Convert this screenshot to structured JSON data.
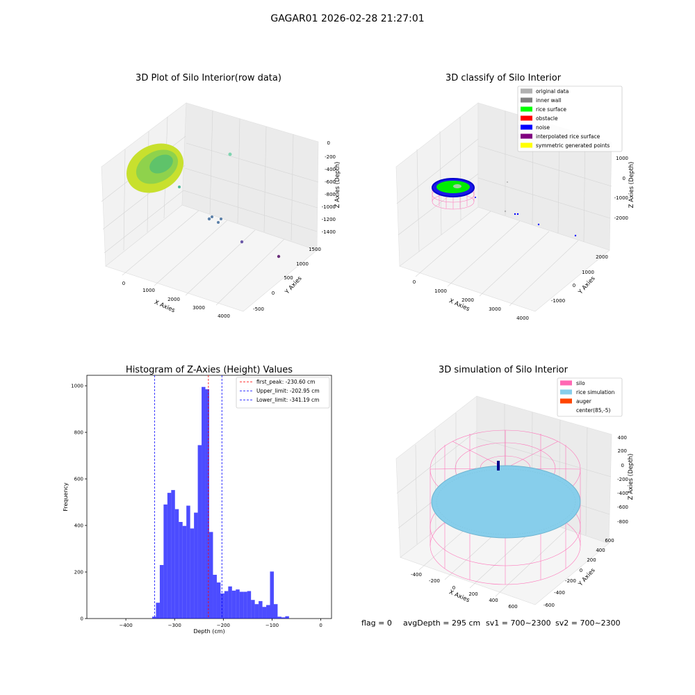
{
  "figure": {
    "suptitle": "GAGAR01 2026-02-28 21:27:01",
    "footer": {
      "flag": "flag = 0",
      "avg_depth": "avgDepth = 295 cm",
      "sv1": "sv1 = 700~2300",
      "sv2": "sv2 = 700~2300"
    }
  },
  "panels": {
    "raw": {
      "title": "3D Plot of Silo Interior(row data)",
      "xlabel": "X Axies",
      "ylabel": "Y Axies",
      "zlabel": "Z Axies (Depth)",
      "xticks": [
        "0",
        "1000",
        "2000",
        "3000",
        "4000"
      ],
      "yticks": [
        "-500",
        "0",
        "500",
        "1000",
        "1500"
      ],
      "zticks": [
        "0",
        "-200",
        "-400",
        "-600",
        "-800",
        "-1000",
        "-1200",
        "-1400"
      ]
    },
    "classify": {
      "title": "3D classify of Silo Interior",
      "xlabel": "X Axies",
      "ylabel": "Y Axies",
      "zlabel": "Z Axies (Depth)",
      "xticks": [
        "0",
        "1000",
        "2000",
        "3000",
        "4000"
      ],
      "yticks": [
        "-1000",
        "0",
        "1000",
        "2000"
      ],
      "zticks": [
        "1000",
        "0",
        "-1000",
        "-2000"
      ],
      "legend": [
        {
          "label": "original data",
          "color": "#b0b0b0"
        },
        {
          "label": "inner wall",
          "color": "#808080"
        },
        {
          "label": "rice surface",
          "color": "#00ff00"
        },
        {
          "label": "obstacle",
          "color": "#ff0000"
        },
        {
          "label": "noise",
          "color": "#0000ff"
        },
        {
          "label": "interpolated rice surface",
          "color": "#800080"
        },
        {
          "label": "symmetric generated points",
          "color": "#ffff00"
        }
      ]
    },
    "histogram": {
      "title": "Histogram of Z-Axies (Height) Values",
      "xlabel": "Depth (cm)",
      "ylabel": "Frequency",
      "legend": [
        {
          "label": "first_peak: -230.60 cm",
          "color": "#ff0000"
        },
        {
          "label": "Upper_limit: -202.95 cm",
          "color": "#0000ff"
        },
        {
          "label": "Lower_limit: -341.19 cm",
          "color": "#0000ff"
        }
      ]
    },
    "simulation": {
      "title": "3D simulation of Silo Interior",
      "xlabel": "X Axies",
      "ylabel": "Y Axies",
      "zlabel": "Z Axies (Depth)",
      "xticks": [
        "-400",
        "-200",
        "0",
        "200",
        "400",
        "600"
      ],
      "yticks": [
        "-600",
        "-400",
        "-200",
        "0",
        "200",
        "400",
        "600"
      ],
      "zticks": [
        "400",
        "200",
        "0",
        "-200",
        "-400",
        "-600",
        "-800"
      ],
      "legend": [
        {
          "label": "silo",
          "color": "#ff69b4"
        },
        {
          "label": "rice simulation",
          "color": "#87ceeb"
        },
        {
          "label": "auger",
          "color": "#ff4500"
        },
        {
          "label": "center(85,-5)",
          "color": "none"
        }
      ]
    }
  },
  "chart_data": [
    {
      "type": "scatter",
      "title": "3D Plot of Silo Interior(row data)",
      "xlabel": "X Axies",
      "ylabel": "Y Axies",
      "zlabel": "Z Axies (Depth)",
      "xlim": [
        -500,
        4500
      ],
      "ylim": [
        -700,
        1700
      ],
      "zlim": [
        -1500,
        100
      ]
    },
    {
      "type": "scatter",
      "title": "3D classify of Silo Interior",
      "xlabel": "X Axies",
      "ylabel": "Y Axies",
      "zlabel": "Z Axies (Depth)",
      "xlim": [
        -500,
        4500
      ],
      "ylim": [
        -1700,
        2700
      ],
      "zlim": [
        -2700,
        1500
      ]
    },
    {
      "type": "bar",
      "title": "Histogram of Z-Axies (Height) Values",
      "xlabel": "Depth (cm)",
      "ylabel": "Frequency",
      "xlim": [
        -480,
        22
      ],
      "ylim": [
        0,
        1045
      ],
      "xticks": [
        -400,
        -300,
        -200,
        -100,
        0
      ],
      "yticks": [
        0,
        200,
        400,
        600,
        800,
        1000
      ],
      "bin_start": -346,
      "bin_width": 7.8,
      "values": [
        8,
        68,
        230,
        490,
        540,
        552,
        470,
        415,
        398,
        485,
        387,
        455,
        745,
        995,
        985,
        372,
        188,
        155,
        108,
        118,
        138,
        120,
        125,
        115,
        115,
        118,
        80,
        62,
        75,
        50,
        58,
        202,
        62,
        8,
        5,
        10
      ],
      "lines": [
        {
          "label": "first_peak: -230.60 cm",
          "x": -230.6,
          "color": "#ff0000"
        },
        {
          "label": "Upper_limit: -202.95 cm",
          "x": -202.95,
          "color": "#0000ff"
        },
        {
          "label": "Lower_limit: -341.19 cm",
          "x": -341.19,
          "color": "#0000ff"
        }
      ]
    },
    {
      "type": "scatter",
      "title": "3D simulation of Silo Interior",
      "xlabel": "X Axies",
      "ylabel": "Y Axies",
      "zlabel": "Z Axies (Depth)",
      "xlim": [
        -500,
        700
      ],
      "ylim": [
        -700,
        700
      ],
      "zlim": [
        -900,
        450
      ],
      "center": [
        85,
        -5
      ]
    }
  ]
}
